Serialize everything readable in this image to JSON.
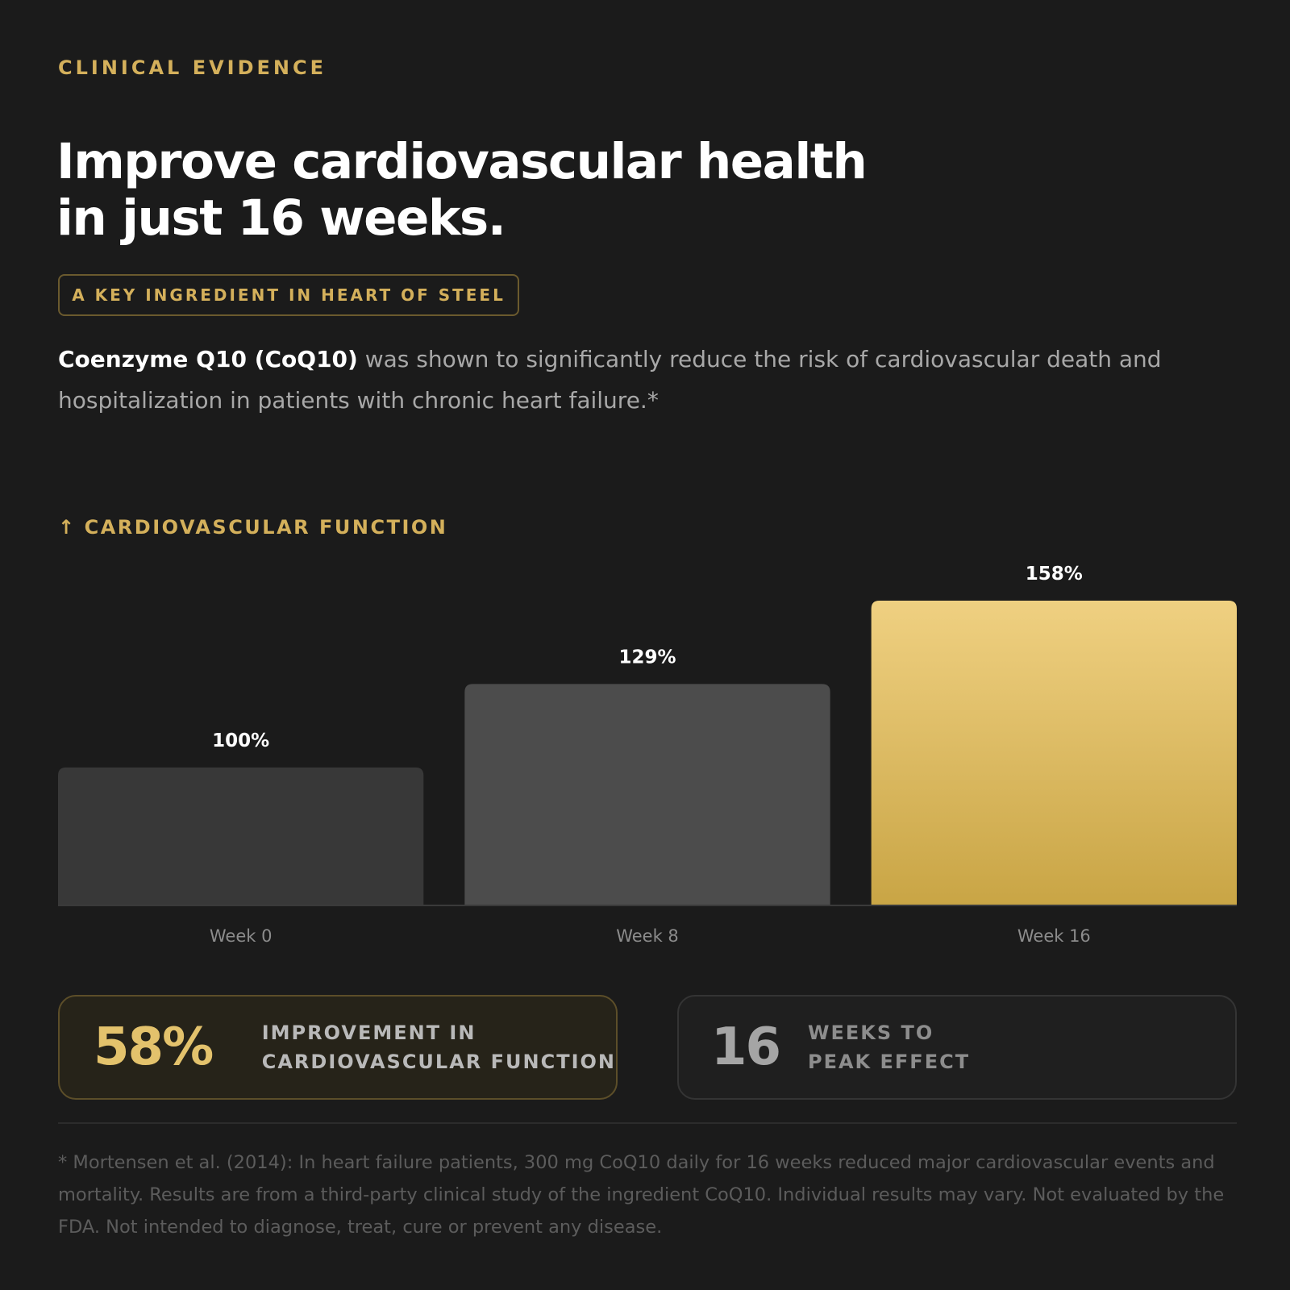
{
  "header": {
    "eyebrow": "CLINICAL EVIDENCE",
    "headline_line1": "Improve cardiovascular health",
    "headline_line2": "in just 16 weeks.",
    "badge": "A KEY INGREDIENT IN HEART OF STEEL"
  },
  "description": {
    "strong": "Coenzyme Q10 (CoQ10)",
    "rest": " was shown to significantly reduce the risk of cardiovascular death and hospitalization in patients with chronic heart failure.*"
  },
  "metric": {
    "arrow_icon": "arrow-up-icon",
    "label": "CARDIOVASCULAR FUNCTION"
  },
  "chart_data": {
    "type": "bar",
    "title": "",
    "xlabel": "",
    "ylabel": "",
    "categories": [
      "Week 0",
      "Week 8",
      "Week 16"
    ],
    "values": [
      100,
      129,
      158
    ],
    "value_labels": [
      "100%",
      "129%",
      "158%"
    ],
    "ylim": [
      0,
      158
    ],
    "grid": false,
    "colors": [
      "#383838",
      "#4c4c4c",
      "#e9c977"
    ]
  },
  "stats": [
    {
      "value": "58%",
      "line1": "IMPROVEMENT IN",
      "line2": "CARDIOVASCULAR FUNCTION"
    },
    {
      "value": "16",
      "line1": "WEEKS TO",
      "line2": "PEAK EFFECT"
    }
  ],
  "footnote": "* Mortensen et al. (2014): In heart failure patients, 300 mg CoQ10 daily for 16 weeks reduced major cardiovascular events and mortality. Results are from a third-party clinical study of the ingredient CoQ10. Individual results may vary. Not evaluated by the FDA. Not intended to diagnose, treat, cure or prevent any disease."
}
